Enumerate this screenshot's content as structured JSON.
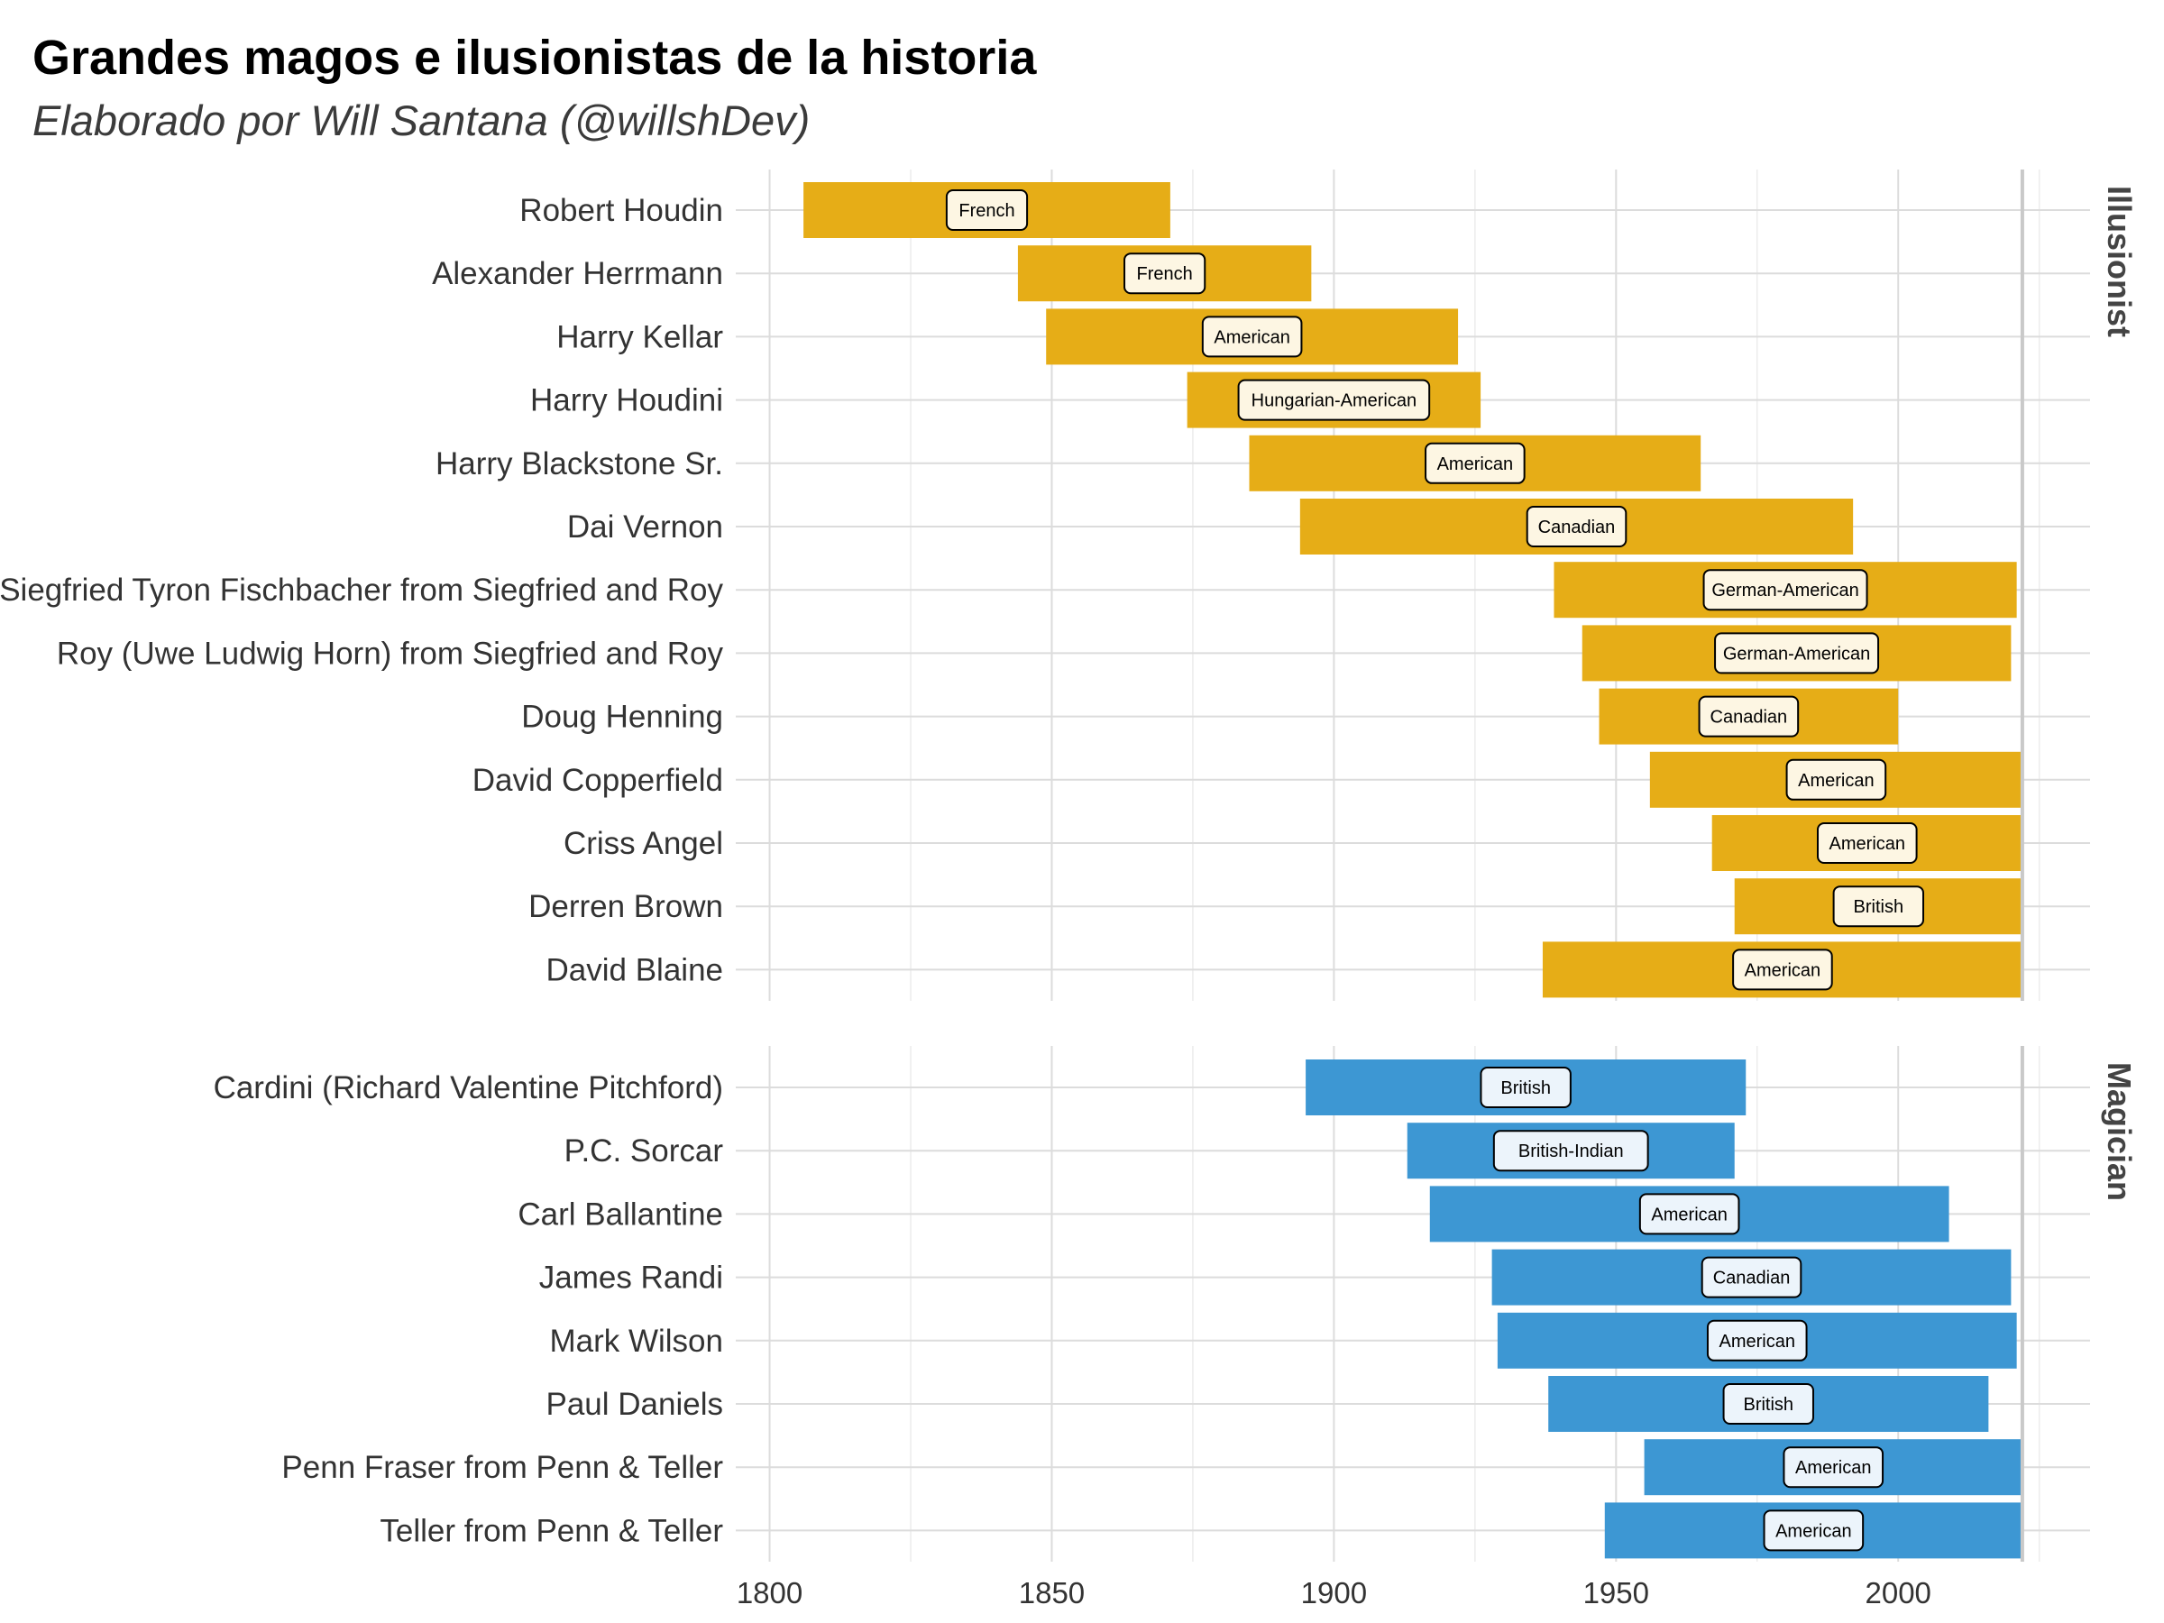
{
  "chart_data": {
    "type": "bar",
    "orientation": "horizontal-range",
    "title": "Grandes magos e ilusionistas de la historia",
    "subtitle": "Elaborado por Will Santana (@willshDev)",
    "xlim": [
      1794,
      2034
    ],
    "x_ticks": [
      "1800",
      "1850",
      "1900",
      "1950",
      "2000"
    ],
    "x_tick_values": [
      1800,
      1850,
      1900,
      1950,
      2000
    ],
    "reference_line": 2022,
    "grid": true,
    "panels": [
      {
        "name": "Illusionist",
        "color": "#e6ad17",
        "label_fill": "#fdf6e3",
        "items": [
          {
            "name": "Robert Houdin",
            "start": 1806,
            "end": 1871,
            "nationality": "French"
          },
          {
            "name": "Alexander Herrmann",
            "start": 1844,
            "end": 1896,
            "nationality": "French"
          },
          {
            "name": "Harry Kellar",
            "start": 1849,
            "end": 1922,
            "nationality": "American"
          },
          {
            "name": "Harry Houdini",
            "start": 1874,
            "end": 1926,
            "nationality": "Hungarian-American"
          },
          {
            "name": "Harry Blackstone Sr.",
            "start": 1885,
            "end": 1965,
            "nationality": "American"
          },
          {
            "name": "Dai Vernon",
            "start": 1894,
            "end": 1992,
            "nationality": "Canadian"
          },
          {
            "name": "Siegfried Tyron Fischbacher from Siegfried and Roy",
            "start": 1939,
            "end": 2021,
            "nationality": "German-American"
          },
          {
            "name": "Roy (Uwe Ludwig Horn) from Siegfried and Roy",
            "start": 1944,
            "end": 2020,
            "nationality": "German-American"
          },
          {
            "name": "Doug Henning",
            "start": 1947,
            "end": 2000,
            "nationality": "Canadian"
          },
          {
            "name": "David Copperfield",
            "start": 1956,
            "end": 2022,
            "nationality": "American"
          },
          {
            "name": "Criss Angel",
            "start": 1967,
            "end": 2022,
            "nationality": "American"
          },
          {
            "name": "Derren Brown",
            "start": 1971,
            "end": 2022,
            "nationality": "British"
          },
          {
            "name": "David Blaine",
            "start": 1937,
            "end": 2022,
            "nationality": "American"
          }
        ]
      },
      {
        "name": "Magician",
        "color": "#3d97d3",
        "label_fill": "#ecf4fb",
        "items": [
          {
            "name": "Cardini (Richard Valentine Pitchford)",
            "start": 1895,
            "end": 1973,
            "nationality": "British"
          },
          {
            "name": "P.C. Sorcar",
            "start": 1913,
            "end": 1971,
            "nationality": "British-Indian"
          },
          {
            "name": "Carl Ballantine",
            "start": 1917,
            "end": 2009,
            "nationality": "American"
          },
          {
            "name": "James Randi",
            "start": 1928,
            "end": 2020,
            "nationality": "Canadian"
          },
          {
            "name": "Mark Wilson",
            "start": 1929,
            "end": 2021,
            "nationality": "American"
          },
          {
            "name": "Paul Daniels",
            "start": 1938,
            "end": 2016,
            "nationality": "British"
          },
          {
            "name": "Penn Fraser from Penn & Teller",
            "start": 1955,
            "end": 2022,
            "nationality": "American"
          },
          {
            "name": "Teller from Penn & Teller",
            "start": 1948,
            "end": 2022,
            "nationality": "American"
          }
        ]
      }
    ]
  }
}
